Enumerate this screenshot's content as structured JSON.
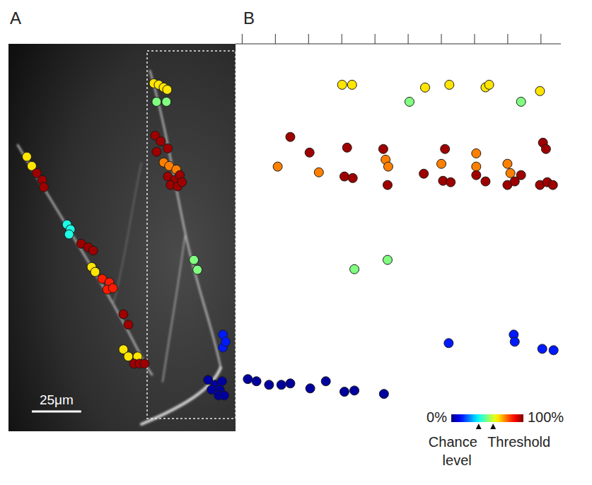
{
  "chart_data": [
    {
      "type": "image",
      "panel": "A",
      "xlim": [
        0,
        115
      ],
      "ylim": [
        0,
        196
      ],
      "scale_bar": {
        "value": 25,
        "label": "25μm"
      },
      "points": [
        {
          "x": 73.6,
          "y": 20,
          "value": 65
        },
        {
          "x": 76.1,
          "y": 20.7,
          "value": 65
        },
        {
          "x": 78.6,
          "y": 22.1,
          "value": 65
        },
        {
          "x": 80.4,
          "y": 23.2,
          "value": 65
        },
        {
          "x": 75,
          "y": 29.3,
          "value": 50
        },
        {
          "x": 80,
          "y": 29.3,
          "value": 50
        },
        {
          "x": 74.3,
          "y": 46.4,
          "value": 97
        },
        {
          "x": 77.1,
          "y": 49.3,
          "value": 97
        },
        {
          "x": 75,
          "y": 54.6,
          "value": 97
        },
        {
          "x": 80.7,
          "y": 52.9,
          "value": 97
        },
        {
          "x": 78.6,
          "y": 60,
          "value": 75
        },
        {
          "x": 81.4,
          "y": 61.8,
          "value": 75
        },
        {
          "x": 85,
          "y": 63.6,
          "value": 75
        },
        {
          "x": 80.7,
          "y": 67.1,
          "value": 97
        },
        {
          "x": 84.3,
          "y": 68.9,
          "value": 97
        },
        {
          "x": 86.8,
          "y": 66.4,
          "value": 97
        },
        {
          "x": 82.1,
          "y": 71.4,
          "value": 97
        },
        {
          "x": 85.7,
          "y": 72.1,
          "value": 97
        },
        {
          "x": 87.9,
          "y": 70,
          "value": 97
        },
        {
          "x": 93.9,
          "y": 109.3,
          "value": 50
        },
        {
          "x": 95.7,
          "y": 114.3,
          "value": 50
        },
        {
          "x": 108.6,
          "y": 147.1,
          "value": 15
        },
        {
          "x": 108.6,
          "y": 153.6,
          "value": 15
        },
        {
          "x": 110,
          "y": 150.7,
          "value": 15
        },
        {
          "x": 101.1,
          "y": 170,
          "value": 3
        },
        {
          "x": 104.6,
          "y": 172.5,
          "value": 3
        },
        {
          "x": 107.1,
          "y": 175,
          "value": 3
        },
        {
          "x": 102.9,
          "y": 175,
          "value": 3
        },
        {
          "x": 108.2,
          "y": 170.7,
          "value": 3
        },
        {
          "x": 106.4,
          "y": 177.9,
          "value": 3
        },
        {
          "x": 109.3,
          "y": 177.9,
          "value": 3
        },
        {
          "x": 9.3,
          "y": 57.1,
          "value": 65
        },
        {
          "x": 11.8,
          "y": 61.8,
          "value": 65
        },
        {
          "x": 14.3,
          "y": 65.4,
          "value": 97
        },
        {
          "x": 17.1,
          "y": 68.9,
          "value": 97
        },
        {
          "x": 17.9,
          "y": 72.5,
          "value": 97
        },
        {
          "x": 29.6,
          "y": 91.4,
          "value": 40
        },
        {
          "x": 31.4,
          "y": 93.9,
          "value": 40
        },
        {
          "x": 30.7,
          "y": 96.4,
          "value": 40
        },
        {
          "x": 36.8,
          "y": 101.1,
          "value": 97
        },
        {
          "x": 40.4,
          "y": 102.9,
          "value": 97
        },
        {
          "x": 42.9,
          "y": 104.6,
          "value": 97
        },
        {
          "x": 42.1,
          "y": 112.9,
          "value": 65
        },
        {
          "x": 43.9,
          "y": 115.4,
          "value": 65
        },
        {
          "x": 47.5,
          "y": 118.9,
          "value": 85
        },
        {
          "x": 51.1,
          "y": 120.7,
          "value": 85
        },
        {
          "x": 50,
          "y": 124.3,
          "value": 85
        },
        {
          "x": 52.9,
          "y": 123.6,
          "value": 85
        },
        {
          "x": 58.2,
          "y": 136.8,
          "value": 97
        },
        {
          "x": 60.7,
          "y": 142.1,
          "value": 97
        },
        {
          "x": 58.2,
          "y": 154.6,
          "value": 65
        },
        {
          "x": 60.7,
          "y": 158.2,
          "value": 65
        },
        {
          "x": 65.4,
          "y": 158.2,
          "value": 65
        },
        {
          "x": 63.6,
          "y": 161.8,
          "value": 97
        },
        {
          "x": 66.4,
          "y": 161.8,
          "value": 97
        },
        {
          "x": 68.9,
          "y": 161.8,
          "value": 97
        }
      ]
    },
    {
      "type": "scatter",
      "panel": "B",
      "xlim": [
        -0.2,
        9.6
      ],
      "ylim": [
        0,
        196
      ],
      "xticks": [
        0,
        1,
        2,
        3,
        4,
        5,
        6,
        7,
        8,
        9
      ],
      "tick_labels": false,
      "points": [
        {
          "x": 3.01,
          "y": 20.7,
          "value": 65
        },
        {
          "x": 3.31,
          "y": 20.7,
          "value": 65
        },
        {
          "x": 5.51,
          "y": 22.1,
          "value": 65
        },
        {
          "x": 6.24,
          "y": 20.7,
          "value": 65
        },
        {
          "x": 7.33,
          "y": 22,
          "value": 65
        },
        {
          "x": 7.44,
          "y": 20.7,
          "value": 65
        },
        {
          "x": 8.97,
          "y": 23.9,
          "value": 65
        },
        {
          "x": 5.04,
          "y": 29.3,
          "value": 50
        },
        {
          "x": 8.4,
          "y": 29.3,
          "value": 50
        },
        {
          "x": 1.45,
          "y": 47.1,
          "value": 97
        },
        {
          "x": 2.03,
          "y": 55,
          "value": 97
        },
        {
          "x": 3.16,
          "y": 52.5,
          "value": 97
        },
        {
          "x": 4.25,
          "y": 53.2,
          "value": 97
        },
        {
          "x": 6.11,
          "y": 53.2,
          "value": 97
        },
        {
          "x": 9.06,
          "y": 50,
          "value": 97
        },
        {
          "x": 9.15,
          "y": 53.2,
          "value": 97
        },
        {
          "x": 1.07,
          "y": 62.1,
          "value": 75
        },
        {
          "x": 2.31,
          "y": 65,
          "value": 75
        },
        {
          "x": 4.32,
          "y": 58.6,
          "value": 75
        },
        {
          "x": 4.4,
          "y": 62.1,
          "value": 75
        },
        {
          "x": 6,
          "y": 60.7,
          "value": 75
        },
        {
          "x": 7.05,
          "y": 55.4,
          "value": 75
        },
        {
          "x": 7.05,
          "y": 62.1,
          "value": 75
        },
        {
          "x": 7.99,
          "y": 60.7,
          "value": 75
        },
        {
          "x": 8.08,
          "y": 65.4,
          "value": 75
        },
        {
          "x": 3.08,
          "y": 67.1,
          "value": 97
        },
        {
          "x": 3.33,
          "y": 67.9,
          "value": 97
        },
        {
          "x": 4.38,
          "y": 71.4,
          "value": 97
        },
        {
          "x": 5.47,
          "y": 65.7,
          "value": 97
        },
        {
          "x": 6.05,
          "y": 69.3,
          "value": 97
        },
        {
          "x": 6.28,
          "y": 70,
          "value": 97
        },
        {
          "x": 7.05,
          "y": 66.4,
          "value": 97
        },
        {
          "x": 7.33,
          "y": 69.6,
          "value": 97
        },
        {
          "x": 7.99,
          "y": 71.4,
          "value": 97
        },
        {
          "x": 8.21,
          "y": 69.6,
          "value": 97
        },
        {
          "x": 8.4,
          "y": 66.4,
          "value": 97
        },
        {
          "x": 8.97,
          "y": 71.4,
          "value": 97
        },
        {
          "x": 9.19,
          "y": 70,
          "value": 97
        },
        {
          "x": 9.36,
          "y": 71.4,
          "value": 97
        },
        {
          "x": 3.38,
          "y": 114,
          "value": 50
        },
        {
          "x": 4.38,
          "y": 109.3,
          "value": 50
        },
        {
          "x": 6.22,
          "y": 151.4,
          "value": 15
        },
        {
          "x": 8.18,
          "y": 147.1,
          "value": 15
        },
        {
          "x": 8.21,
          "y": 150.7,
          "value": 15
        },
        {
          "x": 9.04,
          "y": 154.3,
          "value": 15
        },
        {
          "x": 9.38,
          "y": 155,
          "value": 15
        },
        {
          "x": 0.17,
          "y": 169.6,
          "value": 3
        },
        {
          "x": 0.43,
          "y": 170.7,
          "value": 3
        },
        {
          "x": 0.81,
          "y": 172.5,
          "value": 3
        },
        {
          "x": 1.18,
          "y": 172.5,
          "value": 3
        },
        {
          "x": 1.45,
          "y": 171.8,
          "value": 3
        },
        {
          "x": 2.05,
          "y": 174.3,
          "value": 3
        },
        {
          "x": 2.52,
          "y": 170.7,
          "value": 3
        },
        {
          "x": 3.08,
          "y": 176,
          "value": 3
        },
        {
          "x": 3.38,
          "y": 175.4,
          "value": 3
        },
        {
          "x": 4.27,
          "y": 177.1,
          "value": 3
        }
      ],
      "colorbar": {
        "range": [
          0,
          100
        ],
        "ticks": [
          {
            "value": 0,
            "label": "0%"
          },
          {
            "value": 100,
            "label": "100%"
          }
        ],
        "markers": [
          {
            "value": 38,
            "label": "Chance level"
          },
          {
            "value": 58,
            "label": "Threshold"
          }
        ]
      }
    }
  ]
}
